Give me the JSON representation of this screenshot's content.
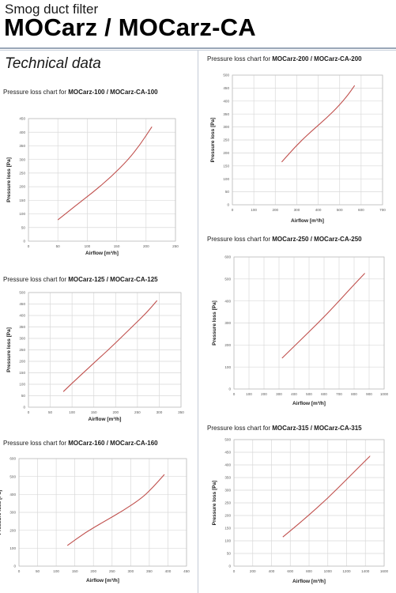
{
  "header": {
    "subtitle": "Smog duct filter",
    "title": "MOCarz / MOCarz-CA"
  },
  "section_title": "Technical data",
  "colors": {
    "curve": "#c0504d",
    "grid": "#d9d9d9",
    "axis": "#bfbfbf",
    "separator": "#9aa7b8"
  },
  "chart_data": [
    {
      "type": "line",
      "title_prefix": "Pressure loss chart for ",
      "title_models": "MOCarz-100 / MOCarz-CA-100",
      "xlabel": "Airflow [m³/h]",
      "ylabel": "Pressure loss [Pa]",
      "xlim": [
        0,
        250
      ],
      "ylim": [
        0,
        450
      ],
      "xticks": [
        0,
        50,
        100,
        150,
        200,
        250
      ],
      "yticks": [
        0,
        50,
        100,
        150,
        200,
        250,
        300,
        350,
        400,
        450
      ],
      "series": [
        {
          "x": [
            50,
            80,
            110,
            140,
            170,
            190,
            210
          ],
          "y": [
            78,
            130,
            180,
            235,
            300,
            355,
            420
          ]
        }
      ]
    },
    {
      "type": "line",
      "title_prefix": "Pressure loss chart for ",
      "title_models": "MOCarz-125 / MOCarz-CA-125",
      "xlabel": "Airflow [m³/h]",
      "ylabel": "Pressure loss [Pa]",
      "xlim": [
        0,
        350
      ],
      "ylim": [
        0,
        500
      ],
      "xticks": [
        0,
        50,
        100,
        150,
        200,
        250,
        300,
        350
      ],
      "yticks": [
        0,
        50,
        100,
        150,
        200,
        250,
        300,
        350,
        400,
        450,
        500
      ],
      "series": [
        {
          "x": [
            80,
            120,
            160,
            200,
            240,
            270,
            295
          ],
          "y": [
            68,
            140,
            210,
            280,
            355,
            410,
            465
          ]
        }
      ]
    },
    {
      "type": "line",
      "title_prefix": "Pressure loss chart for ",
      "title_models": "MOCarz-160 / MOCarz-CA-160",
      "xlabel": "Airflow [m³/h]",
      "ylabel": "Pressure loss [Pa]",
      "xlim": [
        0,
        450
      ],
      "ylim": [
        0,
        600
      ],
      "xticks": [
        0,
        50,
        100,
        150,
        200,
        250,
        300,
        350,
        400,
        450
      ],
      "yticks": [
        0,
        100,
        200,
        300,
        400,
        500,
        600
      ],
      "series": [
        {
          "x": [
            130,
            180,
            230,
            280,
            330,
            360,
            390
          ],
          "y": [
            115,
            190,
            250,
            310,
            380,
            440,
            510
          ]
        }
      ]
    },
    {
      "type": "line",
      "title_prefix": "Pressure loss chart for ",
      "title_models": "MOCarz-200 / MOCarz-CA-200",
      "xlabel": "Airflow [m³/h]",
      "ylabel": "Pressure loss [Pa]",
      "xlim": [
        0,
        700
      ],
      "ylim": [
        0,
        500
      ],
      "xticks": [
        0,
        100,
        200,
        300,
        400,
        500,
        600,
        700
      ],
      "yticks": [
        0,
        50,
        100,
        150,
        200,
        250,
        300,
        350,
        400,
        450,
        500
      ],
      "series": [
        {
          "x": [
            230,
            300,
            370,
            440,
            500,
            540,
            570
          ],
          "y": [
            165,
            230,
            285,
            335,
            385,
            425,
            460
          ]
        }
      ]
    },
    {
      "type": "line",
      "title_prefix": "Pressure loss chart for ",
      "title_models": "MOCarz-250 / MOCarz-CA-250",
      "xlabel": "Airflow [m³/h]",
      "ylabel": "Pressure loss [Pa]",
      "xlim": [
        0,
        1000
      ],
      "ylim": [
        0,
        600
      ],
      "xticks": [
        0,
        100,
        200,
        300,
        400,
        500,
        600,
        700,
        800,
        900,
        1000
      ],
      "yticks": [
        0,
        100,
        200,
        300,
        400,
        500,
        600
      ],
      "series": [
        {
          "x": [
            320,
            440,
            560,
            680,
            780,
            870
          ],
          "y": [
            140,
            220,
            300,
            385,
            460,
            525
          ]
        }
      ]
    },
    {
      "type": "line",
      "title_prefix": "Pressure loss chart for ",
      "title_models": "MOCarz-315 / MOCarz-CA-315",
      "xlabel": "Airflow [m³/h]",
      "ylabel": "Pressure loss [Pa]",
      "xlim": [
        0,
        1600
      ],
      "ylim": [
        0,
        500
      ],
      "xticks": [
        0,
        200,
        400,
        600,
        800,
        1000,
        1200,
        1400,
        1600
      ],
      "yticks": [
        0,
        50,
        100,
        150,
        200,
        250,
        300,
        350,
        400,
        450,
        500
      ],
      "series": [
        {
          "x": [
            520,
            700,
            900,
            1100,
            1300,
            1450
          ],
          "y": [
            115,
            170,
            235,
            305,
            380,
            435
          ]
        }
      ]
    }
  ]
}
